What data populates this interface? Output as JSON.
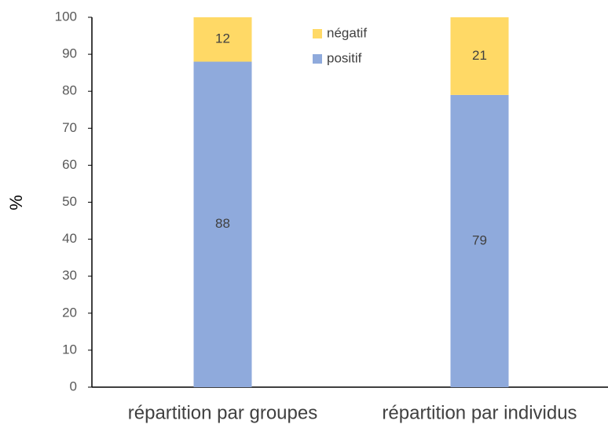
{
  "chart_data": {
    "type": "stacked_bar",
    "y_label": "%",
    "categories": [
      "répartition par groupes",
      "répartition par individus"
    ],
    "series": [
      {
        "name": "positif",
        "color": "#8faadc",
        "values": [
          88,
          79
        ]
      },
      {
        "name": "négatif",
        "color": "#ffd966",
        "values": [
          12,
          21
        ]
      }
    ],
    "ylim": [
      0,
      100
    ],
    "yticks": [
      0,
      10,
      20,
      30,
      40,
      50,
      60,
      70,
      80,
      90,
      100
    ],
    "grid": false,
    "legend": "top"
  }
}
